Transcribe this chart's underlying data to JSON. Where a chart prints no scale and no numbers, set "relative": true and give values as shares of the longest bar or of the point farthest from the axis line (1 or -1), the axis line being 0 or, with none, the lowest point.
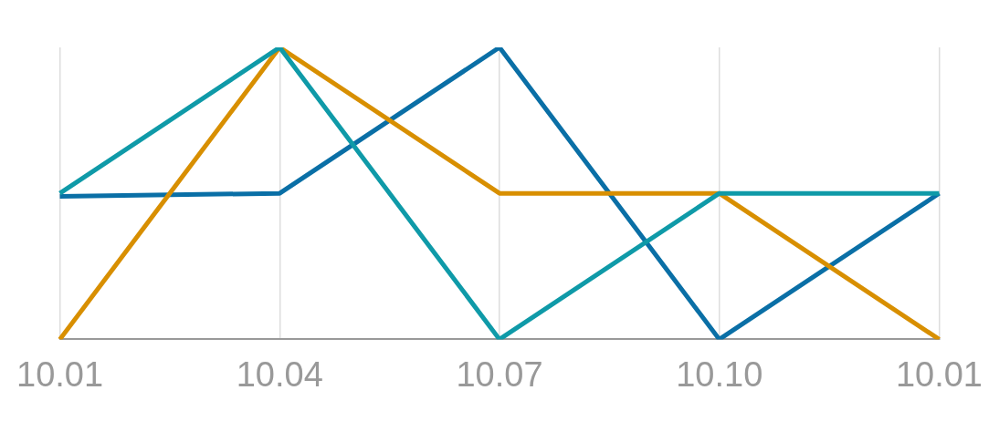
{
  "chart_data": {
    "type": "line",
    "relative": true,
    "grid": "x",
    "legend": false,
    "marker": "none",
    "categories": [
      "10.01",
      "10.04",
      "10.07",
      "10.10",
      "10.01"
    ],
    "series": [
      {
        "color": "#0f9aa8",
        "values": [
          0.5,
          1,
          0,
          0.5,
          0.5
        ]
      },
      {
        "color": "#d88f00",
        "values": [
          0,
          1,
          0.5,
          0.5,
          0
        ]
      },
      {
        "color": "#0a6fa6",
        "values": [
          0.49,
          0.5,
          1,
          0,
          0.5
        ]
      }
    ]
  }
}
